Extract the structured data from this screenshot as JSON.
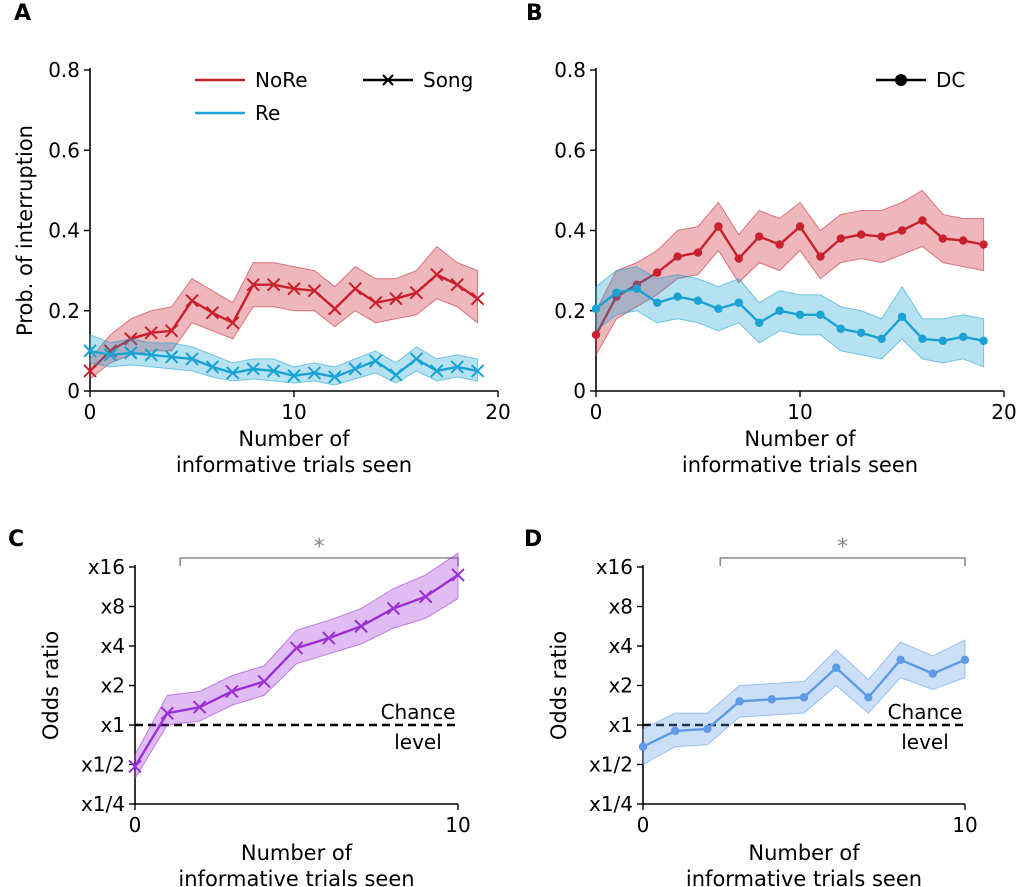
{
  "colors": {
    "nore": "#c8202e",
    "re": "#1aa2d4",
    "odds_song": "#9a30d4",
    "odds_dc": "#5e9ae6",
    "sig_bracket": "#888888",
    "chance_line": "#000000"
  },
  "chart_data": [
    {
      "panel": "A",
      "type": "line",
      "xlabel_lines": [
        "Number of",
        "informative trials seen"
      ],
      "ylabel": "Prob. of interruption",
      "xlim": [
        0,
        20
      ],
      "ylim": [
        0,
        0.8
      ],
      "xticks": [
        "0",
        "10",
        "20"
      ],
      "yticks": [
        "0",
        "0.2",
        "0.4",
        "0.6",
        "0.8"
      ],
      "legend": {
        "placement": "top",
        "entries": [
          {
            "label": "NoRe",
            "kind": "line",
            "color_key": "nore"
          },
          {
            "label": "Re",
            "kind": "line",
            "color_key": "re"
          },
          {
            "label": "Song",
            "kind": "marker-x",
            "color_key": "chance_line"
          }
        ]
      },
      "x": [
        0,
        1,
        2,
        3,
        4,
        5,
        6,
        7,
        8,
        9,
        10,
        11,
        12,
        13,
        14,
        15,
        16,
        17,
        18,
        19
      ],
      "series": [
        {
          "name": "NoRe",
          "color_key": "nore",
          "marker": "x",
          "values": [
            0.05,
            0.1,
            0.13,
            0.145,
            0.15,
            0.225,
            0.195,
            0.17,
            0.265,
            0.265,
            0.255,
            0.25,
            0.205,
            0.255,
            0.22,
            0.23,
            0.245,
            0.29,
            0.265,
            0.23
          ],
          "lower": [
            0.03,
            0.07,
            0.09,
            0.1,
            0.1,
            0.17,
            0.15,
            0.13,
            0.21,
            0.21,
            0.2,
            0.2,
            0.16,
            0.2,
            0.17,
            0.18,
            0.19,
            0.23,
            0.21,
            0.17
          ],
          "upper": [
            0.08,
            0.14,
            0.18,
            0.2,
            0.21,
            0.28,
            0.25,
            0.22,
            0.32,
            0.32,
            0.31,
            0.3,
            0.26,
            0.31,
            0.28,
            0.28,
            0.3,
            0.36,
            0.32,
            0.3
          ]
        },
        {
          "name": "Re",
          "color_key": "re",
          "marker": "x",
          "values": [
            0.1,
            0.09,
            0.095,
            0.09,
            0.085,
            0.08,
            0.06,
            0.045,
            0.055,
            0.05,
            0.038,
            0.045,
            0.035,
            0.055,
            0.075,
            0.04,
            0.08,
            0.05,
            0.06,
            0.05
          ],
          "lower": [
            0.07,
            0.06,
            0.065,
            0.06,
            0.055,
            0.05,
            0.035,
            0.025,
            0.03,
            0.025,
            0.02,
            0.025,
            0.015,
            0.03,
            0.045,
            0.02,
            0.05,
            0.025,
            0.035,
            0.025
          ],
          "upper": [
            0.14,
            0.12,
            0.13,
            0.12,
            0.12,
            0.11,
            0.09,
            0.07,
            0.08,
            0.08,
            0.06,
            0.07,
            0.06,
            0.08,
            0.1,
            0.07,
            0.11,
            0.08,
            0.09,
            0.08
          ]
        }
      ]
    },
    {
      "panel": "B",
      "type": "line",
      "xlabel_lines": [
        "Number of",
        "informative trials seen"
      ],
      "ylabel": "",
      "xlim": [
        0,
        20
      ],
      "ylim": [
        0,
        0.8
      ],
      "xticks": [
        "0",
        "10",
        "20"
      ],
      "yticks": [
        "0",
        "0.2",
        "0.4",
        "0.6",
        "0.8"
      ],
      "legend": {
        "placement": "top-right",
        "entries": [
          {
            "label": "DC",
            "kind": "marker-dot",
            "color_key": "chance_line"
          }
        ]
      },
      "x": [
        0,
        1,
        2,
        3,
        4,
        5,
        6,
        7,
        8,
        9,
        10,
        11,
        12,
        13,
        14,
        15,
        16,
        17,
        18,
        19
      ],
      "series": [
        {
          "name": "NoRe",
          "color_key": "nore",
          "marker": "dot",
          "values": [
            0.14,
            0.235,
            0.265,
            0.295,
            0.335,
            0.345,
            0.41,
            0.33,
            0.385,
            0.365,
            0.41,
            0.335,
            0.38,
            0.39,
            0.385,
            0.4,
            0.425,
            0.38,
            0.375,
            0.365
          ],
          "lower": [
            0.09,
            0.18,
            0.21,
            0.24,
            0.28,
            0.29,
            0.35,
            0.27,
            0.32,
            0.3,
            0.35,
            0.28,
            0.32,
            0.33,
            0.32,
            0.34,
            0.36,
            0.32,
            0.31,
            0.3
          ],
          "upper": [
            0.2,
            0.3,
            0.32,
            0.35,
            0.4,
            0.41,
            0.47,
            0.39,
            0.45,
            0.43,
            0.47,
            0.4,
            0.44,
            0.45,
            0.45,
            0.47,
            0.5,
            0.44,
            0.43,
            0.43
          ]
        },
        {
          "name": "Re",
          "color_key": "re",
          "marker": "dot",
          "values": [
            0.205,
            0.245,
            0.255,
            0.22,
            0.235,
            0.225,
            0.205,
            0.22,
            0.17,
            0.2,
            0.19,
            0.19,
            0.155,
            0.145,
            0.13,
            0.185,
            0.13,
            0.125,
            0.135,
            0.125
          ],
          "lower": [
            0.15,
            0.19,
            0.2,
            0.17,
            0.18,
            0.17,
            0.15,
            0.17,
            0.12,
            0.15,
            0.14,
            0.14,
            0.1,
            0.09,
            0.08,
            0.13,
            0.08,
            0.07,
            0.08,
            0.06
          ],
          "upper": [
            0.26,
            0.3,
            0.31,
            0.28,
            0.29,
            0.28,
            0.26,
            0.28,
            0.22,
            0.25,
            0.24,
            0.24,
            0.21,
            0.2,
            0.18,
            0.26,
            0.18,
            0.18,
            0.19,
            0.18
          ]
        }
      ]
    },
    {
      "panel": "C",
      "type": "line",
      "xlabel_lines": [
        "Number of",
        "informative trials seen"
      ],
      "ylabel": "Odds ratio",
      "xlim": [
        0,
        10
      ],
      "ylim_log2": [
        -2,
        4
      ],
      "xticks": [
        "0",
        "10"
      ],
      "yticks": [
        "x1/4",
        "x1/2",
        "x1",
        "x2",
        "x4",
        "x8",
        "x16"
      ],
      "chance_label_lines": [
        "Chance",
        "level"
      ],
      "significance": {
        "label": "*",
        "x_from": 1.4,
        "x_to": 10
      },
      "x": [
        0,
        1,
        2,
        3,
        4,
        5,
        6,
        7,
        8,
        9,
        10
      ],
      "series": [
        {
          "name": "",
          "color_key": "odds_song",
          "marker": "x",
          "values_log2": [
            -1.05,
            0.3,
            0.45,
            0.85,
            1.1,
            1.95,
            2.2,
            2.5,
            2.95,
            3.25,
            3.8
          ],
          "lower_log2": [
            -1.35,
            0.0,
            0.1,
            0.5,
            0.75,
            1.55,
            1.8,
            2.05,
            2.45,
            2.7,
            3.2
          ],
          "upper_log2": [
            -0.75,
            0.75,
            0.85,
            1.25,
            1.5,
            2.4,
            2.65,
            2.95,
            3.45,
            3.8,
            4.35
          ]
        }
      ]
    },
    {
      "panel": "D",
      "type": "line",
      "xlabel_lines": [
        "Number of",
        "informative trials seen"
      ],
      "ylabel": "Odds ratio",
      "xlim": [
        0,
        10
      ],
      "ylim_log2": [
        -2,
        4
      ],
      "xticks": [
        "0",
        "10"
      ],
      "yticks": [
        "x1/4",
        "x1/2",
        "x1",
        "x2",
        "x4",
        "x8",
        "x16"
      ],
      "chance_label_lines": [
        "Chance",
        "level"
      ],
      "significance": {
        "label": "*",
        "x_from": 2.4,
        "x_to": 10
      },
      "x": [
        0,
        1,
        2,
        3,
        4,
        5,
        6,
        7,
        8,
        9,
        10
      ],
      "series": [
        {
          "name": "",
          "color_key": "odds_dc",
          "marker": "dot",
          "values_log2": [
            -0.55,
            -0.15,
            -0.1,
            0.6,
            0.65,
            0.7,
            1.45,
            0.7,
            1.65,
            1.3,
            1.65
          ],
          "lower_log2": [
            -1.0,
            -0.55,
            -0.5,
            0.2,
            0.25,
            0.3,
            1.0,
            0.3,
            1.2,
            0.9,
            1.2
          ],
          "upper_log2": [
            -0.1,
            0.3,
            0.3,
            1.0,
            1.05,
            1.1,
            1.9,
            1.15,
            2.1,
            1.75,
            2.15
          ]
        }
      ]
    }
  ]
}
